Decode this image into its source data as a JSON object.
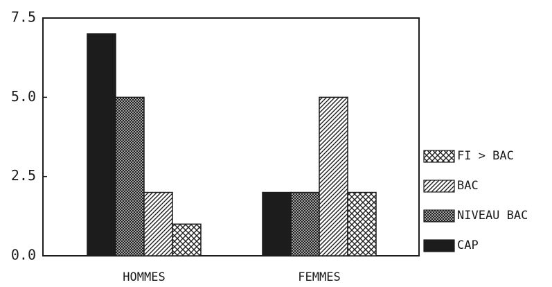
{
  "chart_data": {
    "type": "bar",
    "categories": [
      "HOMMES",
      "FEMMES"
    ],
    "series": [
      {
        "name": "CAP",
        "color": "#1c1c1c",
        "pattern": "solid",
        "values": [
          7,
          2
        ]
      },
      {
        "name": "NIVEAU BAC",
        "color": "#1c1c1c",
        "pattern": "dense-crosshatch",
        "values": [
          5,
          2
        ]
      },
      {
        "name": "BAC",
        "color": "#1c1c1c",
        "pattern": "diagonal",
        "values": [
          2,
          5
        ]
      },
      {
        "name": "FI > BAC",
        "color": "#1c1c1c",
        "pattern": "crosshatch",
        "values": [
          1,
          2
        ]
      }
    ],
    "ylim": [
      0,
      7.5
    ],
    "yticks": [
      {
        "value": 0,
        "label": "0.0"
      },
      2.5,
      {
        "value": 5,
        "label": "5.0"
      },
      7.5
    ],
    "grid": false,
    "legend": "right"
  }
}
